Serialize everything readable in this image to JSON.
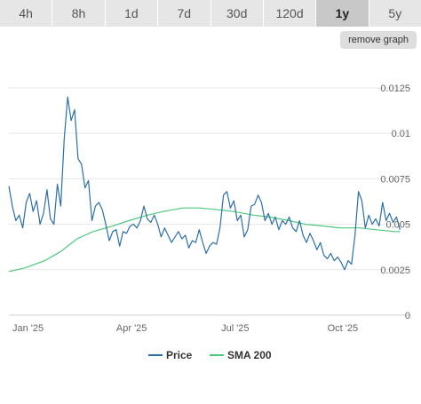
{
  "tabs": [
    {
      "label": "4h",
      "active": false
    },
    {
      "label": "8h",
      "active": false
    },
    {
      "label": "1d",
      "active": false
    },
    {
      "label": "7d",
      "active": false
    },
    {
      "label": "30d",
      "active": false
    },
    {
      "label": "120d",
      "active": false
    },
    {
      "label": "1y",
      "active": true
    },
    {
      "label": "5y",
      "active": false
    }
  ],
  "remove_graph_label": "remove graph",
  "colors": {
    "price": "#2c6fa8",
    "sma": "#4cc87e"
  },
  "chart_data": {
    "type": "line",
    "title": "",
    "xlabel": "",
    "ylabel": "",
    "grid": true,
    "legend_placement": "bottom",
    "x_range": [
      "2025-01-01",
      "2025-12-15"
    ],
    "ylim": [
      0,
      0.0145
    ],
    "y_ticks": [
      {
        "value": 0,
        "label": "0"
      },
      {
        "value": 0.0025,
        "label": "0.0025"
      },
      {
        "value": 0.005,
        "label": "0.005"
      },
      {
        "value": 0.0075,
        "label": "0.0075"
      },
      {
        "value": 0.01,
        "label": "0.01"
      },
      {
        "value": 0.0125,
        "label": "0.0125"
      }
    ],
    "x_ticks": [
      {
        "date": "2025-01-01",
        "label": "Jan '25"
      },
      {
        "date": "2025-04-01",
        "label": "Apr '25"
      },
      {
        "date": "2025-07-01",
        "label": "Jul '25"
      },
      {
        "date": "2025-10-01",
        "label": "Oct '25"
      }
    ],
    "series": [
      {
        "name": "Price",
        "points": [
          [
            "2025-01-01",
            0.0071
          ],
          [
            "2025-01-04",
            0.006
          ],
          [
            "2025-01-07",
            0.0052
          ],
          [
            "2025-01-10",
            0.0055
          ],
          [
            "2025-01-13",
            0.0048
          ],
          [
            "2025-01-16",
            0.0062
          ],
          [
            "2025-01-19",
            0.0067
          ],
          [
            "2025-01-22",
            0.0057
          ],
          [
            "2025-01-25",
            0.0063
          ],
          [
            "2025-01-28",
            0.005
          ],
          [
            "2025-01-31",
            0.0056
          ],
          [
            "2025-02-03",
            0.0069
          ],
          [
            "2025-02-06",
            0.0053
          ],
          [
            "2025-02-09",
            0.005
          ],
          [
            "2025-02-12",
            0.0072
          ],
          [
            "2025-02-15",
            0.006
          ],
          [
            "2025-02-18",
            0.0097
          ],
          [
            "2025-02-21",
            0.012
          ],
          [
            "2025-02-24",
            0.0107
          ],
          [
            "2025-02-27",
            0.0113
          ],
          [
            "2025-03-02",
            0.0086
          ],
          [
            "2025-03-05",
            0.0083
          ],
          [
            "2025-03-08",
            0.007
          ],
          [
            "2025-03-11",
            0.0074
          ],
          [
            "2025-03-14",
            0.0052
          ],
          [
            "2025-03-17",
            0.006
          ],
          [
            "2025-03-20",
            0.0062
          ],
          [
            "2025-03-23",
            0.0058
          ],
          [
            "2025-03-26",
            0.005
          ],
          [
            "2025-03-29",
            0.0041
          ],
          [
            "2025-04-01",
            0.0046
          ],
          [
            "2025-04-04",
            0.0047
          ],
          [
            "2025-04-07",
            0.0038
          ],
          [
            "2025-04-10",
            0.0046
          ],
          [
            "2025-04-13",
            0.0045
          ],
          [
            "2025-04-16",
            0.0049
          ],
          [
            "2025-04-19",
            0.005
          ],
          [
            "2025-04-22",
            0.0048
          ],
          [
            "2025-04-25",
            0.0052
          ],
          [
            "2025-04-28",
            0.006
          ],
          [
            "2025-05-01",
            0.0053
          ],
          [
            "2025-05-04",
            0.0051
          ],
          [
            "2025-05-07",
            0.0055
          ],
          [
            "2025-05-10",
            0.005
          ],
          [
            "2025-05-13",
            0.0043
          ],
          [
            "2025-05-16",
            0.0048
          ],
          [
            "2025-05-19",
            0.0044
          ],
          [
            "2025-05-22",
            0.004
          ],
          [
            "2025-05-25",
            0.0043
          ],
          [
            "2025-05-28",
            0.0046
          ],
          [
            "2025-05-31",
            0.0042
          ],
          [
            "2025-06-03",
            0.0044
          ],
          [
            "2025-06-06",
            0.0037
          ],
          [
            "2025-06-09",
            0.0041
          ],
          [
            "2025-06-12",
            0.004
          ],
          [
            "2025-06-15",
            0.0047
          ],
          [
            "2025-06-18",
            0.004
          ],
          [
            "2025-06-21",
            0.0034
          ],
          [
            "2025-06-24",
            0.0038
          ],
          [
            "2025-06-27",
            0.004
          ],
          [
            "2025-06-30",
            0.0039
          ],
          [
            "2025-07-03",
            0.0048
          ],
          [
            "2025-07-06",
            0.0066
          ],
          [
            "2025-07-09",
            0.0068
          ],
          [
            "2025-07-12",
            0.0059
          ],
          [
            "2025-07-15",
            0.0063
          ],
          [
            "2025-07-18",
            0.0052
          ],
          [
            "2025-07-21",
            0.0055
          ],
          [
            "2025-07-24",
            0.0043
          ],
          [
            "2025-07-27",
            0.0047
          ],
          [
            "2025-07-30",
            0.006
          ],
          [
            "2025-08-02",
            0.0061
          ],
          [
            "2025-08-05",
            0.0066
          ],
          [
            "2025-08-08",
            0.0062
          ],
          [
            "2025-08-11",
            0.0052
          ],
          [
            "2025-08-14",
            0.0056
          ],
          [
            "2025-08-17",
            0.005
          ],
          [
            "2025-08-20",
            0.0054
          ],
          [
            "2025-08-23",
            0.0047
          ],
          [
            "2025-08-26",
            0.0052
          ],
          [
            "2025-08-29",
            0.005
          ],
          [
            "2025-09-01",
            0.0054
          ],
          [
            "2025-09-04",
            0.0048
          ],
          [
            "2025-09-07",
            0.0046
          ],
          [
            "2025-09-10",
            0.0052
          ],
          [
            "2025-09-13",
            0.0044
          ],
          [
            "2025-09-16",
            0.004
          ],
          [
            "2025-09-19",
            0.0045
          ],
          [
            "2025-09-22",
            0.0041
          ],
          [
            "2025-09-25",
            0.0036
          ],
          [
            "2025-09-28",
            0.004
          ],
          [
            "2025-10-01",
            0.0033
          ],
          [
            "2025-10-04",
            0.0031
          ],
          [
            "2025-10-07",
            0.0034
          ],
          [
            "2025-10-10",
            0.003
          ],
          [
            "2025-10-13",
            0.0032
          ],
          [
            "2025-10-16",
            0.0029
          ],
          [
            "2025-10-19",
            0.0025
          ],
          [
            "2025-10-22",
            0.003
          ],
          [
            "2025-10-25",
            0.0028
          ],
          [
            "2025-10-28",
            0.0044
          ],
          [
            "2025-10-31",
            0.0068
          ],
          [
            "2025-11-03",
            0.0063
          ],
          [
            "2025-11-06",
            0.0048
          ],
          [
            "2025-11-09",
            0.0055
          ],
          [
            "2025-11-12",
            0.005
          ],
          [
            "2025-11-15",
            0.0053
          ],
          [
            "2025-11-18",
            0.0049
          ],
          [
            "2025-11-21",
            0.0062
          ],
          [
            "2025-11-24",
            0.0052
          ],
          [
            "2025-11-27",
            0.0056
          ],
          [
            "2025-11-30",
            0.0051
          ],
          [
            "2025-12-03",
            0.0054
          ],
          [
            "2025-12-06",
            0.0047
          ]
        ]
      },
      {
        "name": "SMA 200",
        "points": [
          [
            "2025-01-01",
            0.0024
          ],
          [
            "2025-01-15",
            0.0026
          ],
          [
            "2025-02-01",
            0.003
          ],
          [
            "2025-02-15",
            0.0035
          ],
          [
            "2025-03-01",
            0.0042
          ],
          [
            "2025-03-15",
            0.0046
          ],
          [
            "2025-04-01",
            0.0049
          ],
          [
            "2025-04-15",
            0.0052
          ],
          [
            "2025-05-01",
            0.0055
          ],
          [
            "2025-05-15",
            0.0057
          ],
          [
            "2025-06-01",
            0.0059
          ],
          [
            "2025-06-15",
            0.0059
          ],
          [
            "2025-07-01",
            0.0058
          ],
          [
            "2025-07-15",
            0.0057
          ],
          [
            "2025-08-01",
            0.0055
          ],
          [
            "2025-08-15",
            0.0054
          ],
          [
            "2025-09-01",
            0.0052
          ],
          [
            "2025-09-15",
            0.005
          ],
          [
            "2025-10-01",
            0.0049
          ],
          [
            "2025-10-15",
            0.0048
          ],
          [
            "2025-11-01",
            0.0048
          ],
          [
            "2025-11-15",
            0.0047
          ],
          [
            "2025-12-01",
            0.0046
          ],
          [
            "2025-12-06",
            0.0046
          ]
        ]
      }
    ]
  }
}
